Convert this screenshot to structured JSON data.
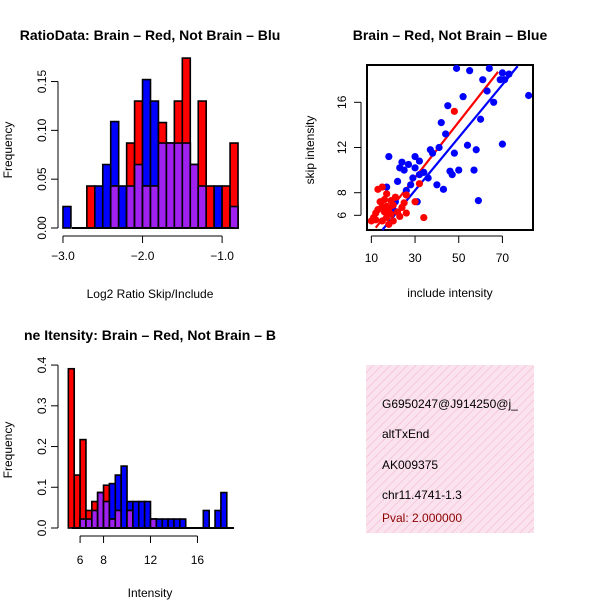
{
  "colors": {
    "red": "#ff0000",
    "blue": "#0000ff",
    "purple": "#a020f0",
    "info_bg": "#fbe0ec",
    "pval": "#8b0000"
  },
  "panel1": {
    "title": "RatioData: Brain – Red, Not Brain – Blu",
    "xlabel": "Log2 Ratio Skip/Include",
    "ylabel": "Frequency",
    "xticks": [
      {
        "v": -3.0,
        "label": "−3.0"
      },
      {
        "v": -2.0,
        "label": "−2.0"
      },
      {
        "v": -1.0,
        "label": "−1.0"
      }
    ],
    "yticks": [
      {
        "v": 0.0,
        "label": "0.00"
      },
      {
        "v": 0.05,
        "label": "0.05"
      },
      {
        "v": 0.1,
        "label": "0.10"
      },
      {
        "v": 0.15,
        "label": "0.15"
      }
    ]
  },
  "panel2": {
    "title": "Brain – Red, Not Brain – Blue",
    "xlabel": "include intensity",
    "ylabel": "skip intensity",
    "xticks": [
      {
        "v": 10,
        "label": "10"
      },
      {
        "v": 30,
        "label": "30"
      },
      {
        "v": 50,
        "label": "50"
      },
      {
        "v": 70,
        "label": "70"
      }
    ],
    "yticks": [
      {
        "v": 6,
        "label": "6"
      },
      {
        "v": 8,
        "label": "8"
      },
      {
        "v": 12,
        "label": "12"
      },
      {
        "v": 16,
        "label": "16"
      }
    ]
  },
  "panel3": {
    "title": "ne Itensity: Brain – Red, Not Brain – B",
    "xlabel": "Intensity",
    "ylabel": "Frequency",
    "xticks": [
      {
        "v": 6,
        "label": "6"
      },
      {
        "v": 8,
        "label": "8"
      },
      {
        "v": 12,
        "label": "12"
      },
      {
        "v": 16,
        "label": "16"
      }
    ],
    "yticks": [
      {
        "v": 0.0,
        "label": "0.0"
      },
      {
        "v": 0.1,
        "label": "0.1"
      },
      {
        "v": 0.2,
        "label": "0.2"
      },
      {
        "v": 0.3,
        "label": "0.3"
      },
      {
        "v": 0.4,
        "label": "0.4"
      }
    ]
  },
  "info": {
    "id": "G6950247@J914250@j_",
    "type": "altTxEnd",
    "accession": "AK009375",
    "location": "chr11.4741-1.3",
    "pval": "Pval: 2.000000"
  },
  "chart_data": [
    {
      "type": "bar",
      "title": "RatioData: Brain – Red, Not Brain – Blu",
      "xlabel": "Log2 Ratio Skip/Include",
      "ylabel": "Frequency",
      "xlim": [
        -3.05,
        -0.75
      ],
      "ylim": [
        0,
        0.17
      ],
      "bin_width": 0.1,
      "bin_starts": [
        -3.0,
        -2.9,
        -2.8,
        -2.7,
        -2.6,
        -2.5,
        -2.4,
        -2.3,
        -2.2,
        -2.1,
        -2.0,
        -1.9,
        -1.8,
        -1.7,
        -1.6,
        -1.5,
        -1.4,
        -1.3,
        -1.2,
        -1.1,
        -1.0,
        -0.9
      ],
      "series": [
        {
          "name": "Not Brain (blue)",
          "values": [
            0.022,
            0,
            0,
            0,
            0.043,
            0.065,
            0.109,
            0.043,
            0.043,
            0.065,
            0.152,
            0.13,
            0.087,
            0.087,
            0.087,
            0.087,
            0.065,
            0.043,
            0,
            0.043,
            0,
            0.022
          ]
        },
        {
          "name": "Brain (red)",
          "values": [
            0,
            0,
            0,
            0.043,
            0,
            0,
            0.043,
            0,
            0.087,
            0.13,
            0.043,
            0.043,
            0.108,
            0.087,
            0.13,
            0.174,
            0.065,
            0.13,
            0.043,
            0,
            0.043,
            0.087
          ]
        }
      ]
    },
    {
      "type": "scatter",
      "title": "Brain – Red, Not Brain – Blue",
      "xlabel": "include intensity",
      "ylabel": "skip intensity",
      "xlim": [
        8,
        84
      ],
      "ylim": [
        4.7,
        19.3
      ],
      "series": [
        {
          "name": "Not Brain (blue)",
          "points": [
            [
              17,
              8.5
            ],
            [
              18,
              11.2
            ],
            [
              20,
              6.5
            ],
            [
              21,
              7.2
            ],
            [
              22,
              9
            ],
            [
              23,
              10.2
            ],
            [
              24,
              10.7
            ],
            [
              25,
              10
            ],
            [
              26,
              8.2
            ],
            [
              27,
              10.5
            ],
            [
              28,
              8.7
            ],
            [
              29,
              9.3
            ],
            [
              30,
              11.2
            ],
            [
              30,
              10.2
            ],
            [
              31,
              7.2
            ],
            [
              32,
              10.8
            ],
            [
              32,
              9.6
            ],
            [
              34,
              9.8
            ],
            [
              36,
              9.3
            ],
            [
              37,
              11.8
            ],
            [
              38,
              11.5
            ],
            [
              40,
              8.7
            ],
            [
              41,
              12
            ],
            [
              42,
              14.2
            ],
            [
              43,
              8.3
            ],
            [
              44,
              13.2
            ],
            [
              45,
              15.7
            ],
            [
              46,
              9.9
            ],
            [
              47,
              9.6
            ],
            [
              48,
              11.5
            ],
            [
              49,
              19
            ],
            [
              50,
              10
            ],
            [
              52,
              16.5
            ],
            [
              54,
              12.2
            ],
            [
              55,
              18.8
            ],
            [
              57,
              10
            ],
            [
              58,
              11.8
            ],
            [
              59,
              7.3
            ],
            [
              60,
              14.5
            ],
            [
              61,
              18
            ],
            [
              63,
              17
            ],
            [
              64,
              19
            ],
            [
              66,
              16
            ],
            [
              69,
              18
            ],
            [
              70,
              18.6
            ],
            [
              70,
              12.3
            ],
            [
              71,
              18
            ],
            [
              73,
              18.5
            ],
            [
              82,
              16.6
            ]
          ]
        },
        {
          "name": "Brain (red)",
          "points": [
            [
              10,
              5.5
            ],
            [
              11,
              5.8
            ],
            [
              12,
              6.2
            ],
            [
              12,
              5.6
            ],
            [
              13,
              6.5
            ],
            [
              13,
              8.3
            ],
            [
              14,
              7.2
            ],
            [
              15,
              5.5
            ],
            [
              15,
              6.8
            ],
            [
              15,
              8.5
            ],
            [
              16,
              6.3
            ],
            [
              16,
              7.4
            ],
            [
              17,
              5.8
            ],
            [
              17,
              7.9
            ],
            [
              17,
              6.8
            ],
            [
              18,
              6.6
            ],
            [
              18,
              5.2
            ],
            [
              19,
              6.1
            ],
            [
              19,
              7.3
            ],
            [
              20,
              5.5
            ],
            [
              20,
              6.9
            ],
            [
              21,
              7.6
            ],
            [
              22,
              6.3
            ],
            [
              23,
              5.9
            ],
            [
              24,
              6.7
            ],
            [
              25,
              7.1
            ],
            [
              26,
              7.8
            ],
            [
              26,
              6.2
            ],
            [
              30,
              7.2
            ],
            [
              32,
              8.8
            ],
            [
              34,
              5.8
            ],
            [
              48,
              15.2
            ]
          ]
        }
      ],
      "fit_lines": [
        {
          "name": "Brain (red) fit",
          "from": [
            12,
            4.9
          ],
          "to": [
            68,
            18.7
          ]
        },
        {
          "name": "Not Brain (blue) fit",
          "from": [
            15,
            4.7
          ],
          "to": [
            77,
            19.2
          ]
        }
      ]
    },
    {
      "type": "bar",
      "title": "ne Itensity: Brain – Red, Not Brain – B",
      "xlabel": "Intensity",
      "ylabel": "Frequency",
      "xlim": [
        4.8,
        19.2
      ],
      "ylim": [
        0,
        0.41
      ],
      "bin_width": 0.5,
      "bin_starts": [
        5,
        5.5,
        6,
        6.5,
        7,
        7.5,
        8,
        8.5,
        9,
        9.5,
        10,
        10.5,
        11,
        11.5,
        12,
        12.5,
        13,
        13.5,
        14,
        14.5,
        15,
        15.5,
        16,
        16.5,
        17,
        17.5,
        18,
        18.5
      ],
      "series": [
        {
          "name": "Not Brain (blue)",
          "values": [
            0,
            0,
            0.022,
            0.022,
            0.043,
            0.087,
            0.065,
            0.109,
            0.13,
            0.152,
            0.065,
            0.065,
            0.065,
            0.065,
            0.022,
            0.022,
            0.022,
            0.022,
            0.022,
            0.022,
            0,
            0,
            0,
            0.043,
            0,
            0.043,
            0.087,
            0
          ]
        },
        {
          "name": "Brain (red)",
          "values": [
            0.391,
            0.13,
            0.217,
            0.043,
            0.065,
            0.087,
            0.105,
            0.022,
            0.043,
            0,
            0.043,
            0,
            0,
            0,
            0.022,
            0,
            0,
            0,
            0,
            0,
            0,
            0,
            0,
            0,
            0,
            0,
            0,
            0
          ]
        }
      ]
    }
  ]
}
